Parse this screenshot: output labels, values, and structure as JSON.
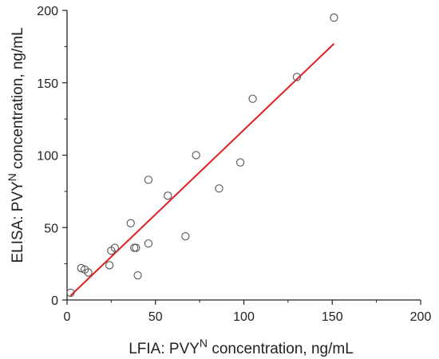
{
  "colors": {
    "fit_line": "#e02020",
    "points": "#555555",
    "axes": "#222222"
  },
  "chart_data": {
    "type": "scatter",
    "title": "",
    "xlabel": {
      "prefix": "LFIA: PVY",
      "superscript": "N",
      "suffix": " concentration, ng/mL"
    },
    "ylabel": {
      "prefix": "ELISA: PVY",
      "superscript": "N",
      "suffix": " concentration, ng/mL"
    },
    "xlim": [
      0,
      200
    ],
    "ylim": [
      0,
      200
    ],
    "x_ticks": [
      "0",
      "50",
      "100",
      "150",
      "200"
    ],
    "y_ticks": [
      "0",
      "50",
      "100",
      "150",
      "200"
    ],
    "grid": false,
    "legend": "none",
    "series": [
      {
        "marker": "open-circle",
        "points": [
          {
            "x": 2,
            "y": 5
          },
          {
            "x": 8,
            "y": 22
          },
          {
            "x": 10,
            "y": 21
          },
          {
            "x": 12,
            "y": 19
          },
          {
            "x": 24,
            "y": 24
          },
          {
            "x": 25,
            "y": 34
          },
          {
            "x": 27,
            "y": 36
          },
          {
            "x": 36,
            "y": 53
          },
          {
            "x": 38,
            "y": 36
          },
          {
            "x": 39,
            "y": 36
          },
          {
            "x": 40,
            "y": 17
          },
          {
            "x": 46,
            "y": 39
          },
          {
            "x": 46,
            "y": 83
          },
          {
            "x": 57,
            "y": 72
          },
          {
            "x": 67,
            "y": 44
          },
          {
            "x": 73,
            "y": 100
          },
          {
            "x": 86,
            "y": 77
          },
          {
            "x": 98,
            "y": 95
          },
          {
            "x": 105,
            "y": 139
          },
          {
            "x": 130,
            "y": 154
          },
          {
            "x": 151,
            "y": 195
          }
        ]
      }
    ],
    "fit_line": {
      "x": [
        2,
        151
      ],
      "y": [
        3,
        177
      ]
    }
  }
}
